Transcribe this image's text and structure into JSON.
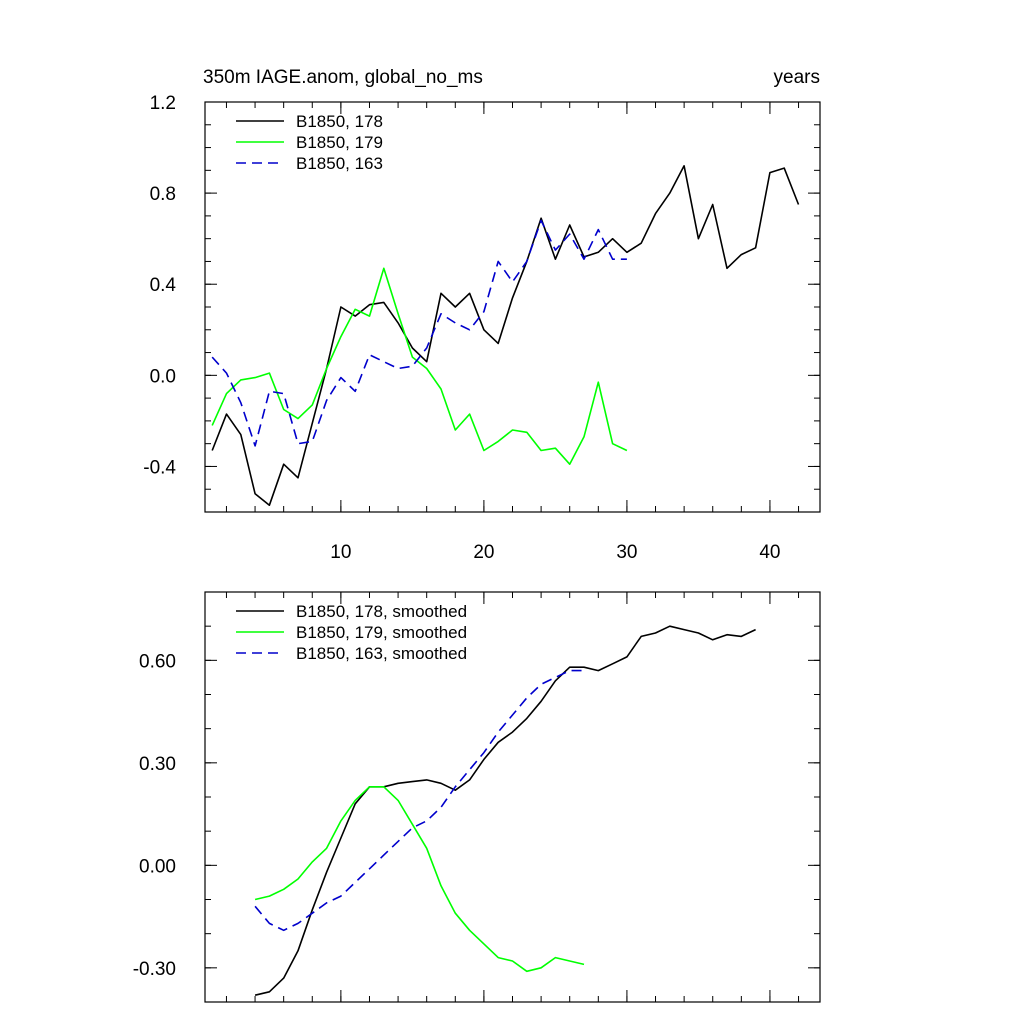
{
  "chart_data": [
    {
      "type": "line",
      "title_left": "350m IAGE.anom, global_no_ms",
      "title_right": "years",
      "xlim": [
        0.5,
        43.5
      ],
      "ylim": [
        -0.6,
        1.2
      ],
      "xticks": [
        10,
        20,
        30,
        40
      ],
      "yticks": [
        -0.4,
        0.0,
        0.4,
        0.8,
        1.2
      ],
      "ytick_labels": [
        "-0.4",
        "0.0",
        "0.4",
        "0.8",
        "1.2"
      ],
      "x_minor_step": 2,
      "y_minor_step": 0.1,
      "legend_position": "top-left",
      "series": [
        {
          "name": "B1850, 178",
          "color": "#000000",
          "dash": "solid",
          "x": [
            1,
            2,
            3,
            4,
            5,
            6,
            7,
            8,
            9,
            10,
            11,
            12,
            13,
            14,
            15,
            16,
            17,
            18,
            19,
            20,
            21,
            22,
            23,
            24,
            25,
            26,
            27,
            28,
            29,
            30,
            31,
            32,
            33,
            34,
            35,
            36,
            37,
            38,
            39,
            40,
            41,
            42
          ],
          "y": [
            -0.33,
            -0.17,
            -0.26,
            -0.52,
            -0.57,
            -0.39,
            -0.45,
            -0.21,
            0.03,
            0.3,
            0.26,
            0.31,
            0.32,
            0.23,
            0.12,
            0.06,
            0.36,
            0.3,
            0.36,
            0.2,
            0.14,
            0.34,
            0.5,
            0.69,
            0.51,
            0.66,
            0.52,
            0.54,
            0.6,
            0.54,
            0.58,
            0.71,
            0.8,
            0.92,
            0.6,
            0.75,
            0.47,
            0.53,
            0.56,
            0.89,
            0.91,
            0.75
          ]
        },
        {
          "name": "B1850, 179",
          "color": "#00ff00",
          "dash": "solid",
          "x": [
            1,
            2,
            3,
            4,
            5,
            6,
            7,
            8,
            9,
            10,
            11,
            12,
            13,
            14,
            15,
            16,
            17,
            18,
            19,
            20,
            21,
            22,
            23,
            24,
            25,
            26,
            27,
            28,
            29,
            30
          ],
          "y": [
            -0.22,
            -0.08,
            -0.02,
            -0.01,
            0.01,
            -0.15,
            -0.19,
            -0.13,
            0.03,
            0.17,
            0.29,
            0.26,
            0.47,
            0.27,
            0.08,
            0.03,
            -0.06,
            -0.24,
            -0.17,
            -0.33,
            -0.29,
            -0.24,
            -0.25,
            -0.33,
            -0.32,
            -0.39,
            -0.27,
            -0.03,
            -0.3,
            -0.33
          ]
        },
        {
          "name": "B1850, 163",
          "color": "#0000cc",
          "dash": "dashed",
          "x": [
            1,
            2,
            3,
            4,
            5,
            6,
            7,
            8,
            9,
            10,
            11,
            12,
            13,
            14,
            15,
            16,
            17,
            18,
            19,
            20,
            21,
            22,
            23,
            24,
            25,
            26,
            27,
            28,
            29,
            30
          ],
          "y": [
            0.08,
            0.01,
            -0.12,
            -0.31,
            -0.07,
            -0.08,
            -0.3,
            -0.29,
            -0.11,
            -0.01,
            -0.07,
            0.09,
            0.06,
            0.03,
            0.04,
            0.12,
            0.27,
            0.23,
            0.2,
            0.28,
            0.5,
            0.41,
            0.5,
            0.68,
            0.55,
            0.62,
            0.51,
            0.64,
            0.51,
            0.51
          ]
        }
      ]
    },
    {
      "type": "line",
      "xlim": [
        0.5,
        43.5
      ],
      "ylim": [
        -0.4,
        0.8
      ],
      "xticks": [
        10,
        20,
        30,
        40
      ],
      "yticks": [
        -0.3,
        0.0,
        0.3,
        0.6
      ],
      "ytick_labels": [
        "-0.30",
        "0.00",
        "0.30",
        "0.60"
      ],
      "x_minor_step": 2,
      "y_minor_step": 0.1,
      "legend_position": "top-left",
      "series": [
        {
          "name": "B1850, 178, smoothed",
          "color": "#000000",
          "dash": "solid",
          "x": [
            4,
            5,
            6,
            7,
            8,
            9,
            10,
            11,
            12,
            13,
            14,
            15,
            16,
            17,
            18,
            19,
            20,
            21,
            22,
            23,
            24,
            25,
            26,
            27,
            28,
            29,
            30,
            31,
            32,
            33,
            34,
            35,
            36,
            37,
            38,
            39
          ],
          "y": [
            -0.38,
            -0.37,
            -0.33,
            -0.25,
            -0.13,
            -0.02,
            0.08,
            0.18,
            0.23,
            0.23,
            0.24,
            0.245,
            0.25,
            0.24,
            0.22,
            0.25,
            0.31,
            0.36,
            0.39,
            0.43,
            0.48,
            0.54,
            0.58,
            0.58,
            0.57,
            0.59,
            0.61,
            0.67,
            0.68,
            0.7,
            0.69,
            0.68,
            0.66,
            0.675,
            0.67,
            0.69
          ]
        },
        {
          "name": "B1850, 179, smoothed",
          "color": "#00ff00",
          "dash": "solid",
          "x": [
            4,
            5,
            6,
            7,
            8,
            9,
            10,
            11,
            12,
            13,
            14,
            15,
            16,
            17,
            18,
            19,
            20,
            21,
            22,
            23,
            24,
            25,
            26,
            27
          ],
          "y": [
            -0.1,
            -0.09,
            -0.07,
            -0.04,
            0.01,
            0.05,
            0.13,
            0.19,
            0.23,
            0.23,
            0.19,
            0.12,
            0.05,
            -0.06,
            -0.14,
            -0.19,
            -0.23,
            -0.27,
            -0.28,
            -0.31,
            -0.3,
            -0.27,
            -0.28,
            -0.29
          ]
        },
        {
          "name": "B1850, 163, smoothed",
          "color": "#0000cc",
          "dash": "dashed",
          "x": [
            4,
            5,
            6,
            7,
            8,
            9,
            10,
            11,
            12,
            13,
            14,
            15,
            16,
            17,
            18,
            19,
            20,
            21,
            22,
            23,
            24,
            25,
            26,
            27
          ],
          "y": [
            -0.12,
            -0.17,
            -0.19,
            -0.17,
            -0.14,
            -0.11,
            -0.09,
            -0.05,
            -0.01,
            0.03,
            0.07,
            0.11,
            0.13,
            0.17,
            0.23,
            0.28,
            0.33,
            0.39,
            0.44,
            0.49,
            0.53,
            0.55,
            0.57,
            0.57
          ]
        }
      ]
    }
  ]
}
